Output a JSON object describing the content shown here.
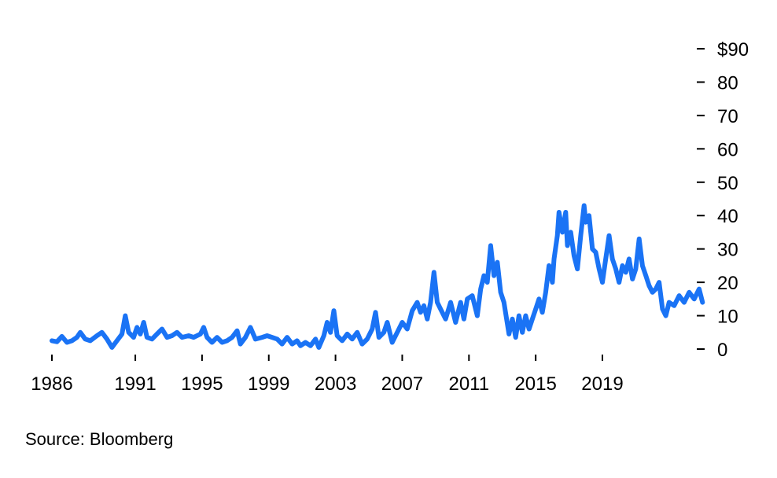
{
  "chart_data": {
    "type": "line",
    "title": "",
    "xlabel": "",
    "ylabel": "",
    "ylim": [
      0,
      90
    ],
    "xlim": [
      1986,
      2022.9
    ],
    "y_ticks": [
      0,
      10,
      20,
      30,
      40,
      50,
      60,
      70,
      80,
      90
    ],
    "y_tick_labels": [
      "0",
      "10",
      "20",
      "30",
      "40",
      "50",
      "60",
      "70",
      "80",
      "$90"
    ],
    "x_ticks": [
      1986,
      1991,
      1995,
      1999,
      2003,
      2007,
      2011,
      2015,
      2019
    ],
    "x_tick_labels": [
      "1986",
      "1991",
      "1995",
      "1999",
      "2003",
      "2007",
      "2011",
      "2015",
      "2019"
    ],
    "grid": false,
    "series": [
      {
        "color": "#1a73f5",
        "points": [
          [
            1986.0,
            2.5
          ],
          [
            1986.3,
            2.2
          ],
          [
            1986.6,
            3.8
          ],
          [
            1986.9,
            2.0
          ],
          [
            1987.2,
            2.5
          ],
          [
            1987.5,
            3.5
          ],
          [
            1987.7,
            5.0
          ],
          [
            1988.0,
            3.0
          ],
          [
            1988.3,
            2.5
          ],
          [
            1988.7,
            4.0
          ],
          [
            1989.0,
            5.0
          ],
          [
            1989.3,
            3.0
          ],
          [
            1989.6,
            0.5
          ],
          [
            1989.9,
            2.5
          ],
          [
            1990.2,
            4.5
          ],
          [
            1990.4,
            10.0
          ],
          [
            1990.6,
            5.0
          ],
          [
            1990.9,
            3.5
          ],
          [
            1991.1,
            6.5
          ],
          [
            1991.3,
            4.5
          ],
          [
            1991.5,
            8.0
          ],
          [
            1991.7,
            3.5
          ],
          [
            1992.0,
            3.0
          ],
          [
            1992.3,
            4.5
          ],
          [
            1992.6,
            6.0
          ],
          [
            1992.9,
            3.5
          ],
          [
            1993.2,
            4.0
          ],
          [
            1993.5,
            5.0
          ],
          [
            1993.8,
            3.5
          ],
          [
            1994.2,
            4.0
          ],
          [
            1994.5,
            3.5
          ],
          [
            1994.9,
            4.5
          ],
          [
            1995.1,
            6.5
          ],
          [
            1995.3,
            3.5
          ],
          [
            1995.6,
            2.0
          ],
          [
            1995.9,
            3.5
          ],
          [
            1996.2,
            2.0
          ],
          [
            1996.5,
            2.5
          ],
          [
            1996.8,
            3.5
          ],
          [
            1997.1,
            5.5
          ],
          [
            1997.3,
            1.5
          ],
          [
            1997.6,
            3.5
          ],
          [
            1997.9,
            6.5
          ],
          [
            1998.2,
            3.0
          ],
          [
            1998.6,
            3.5
          ],
          [
            1998.9,
            4.0
          ],
          [
            1999.2,
            3.5
          ],
          [
            1999.5,
            3.0
          ],
          [
            1999.8,
            1.5
          ],
          [
            2000.1,
            3.5
          ],
          [
            2000.4,
            1.5
          ],
          [
            2000.7,
            2.5
          ],
          [
            2000.9,
            1.0
          ],
          [
            2001.2,
            2.0
          ],
          [
            2001.5,
            1.0
          ],
          [
            2001.8,
            3.0
          ],
          [
            2002.0,
            0.5
          ],
          [
            2002.3,
            4.0
          ],
          [
            2002.5,
            8.0
          ],
          [
            2002.7,
            5.0
          ],
          [
            2002.9,
            11.5
          ],
          [
            2003.1,
            4.0
          ],
          [
            2003.4,
            2.5
          ],
          [
            2003.7,
            4.5
          ],
          [
            2004.0,
            3.0
          ],
          [
            2004.3,
            5.0
          ],
          [
            2004.6,
            1.5
          ],
          [
            2004.9,
            3.0
          ],
          [
            2005.2,
            6.0
          ],
          [
            2005.4,
            11.0
          ],
          [
            2005.6,
            3.5
          ],
          [
            2005.9,
            5.0
          ],
          [
            2006.1,
            8.0
          ],
          [
            2006.4,
            2.0
          ],
          [
            2006.7,
            5.0
          ],
          [
            2007.0,
            8.0
          ],
          [
            2007.3,
            6.0
          ],
          [
            2007.6,
            11.5
          ],
          [
            2007.9,
            14.0
          ],
          [
            2008.1,
            11.0
          ],
          [
            2008.3,
            13.0
          ],
          [
            2008.5,
            9.0
          ],
          [
            2008.7,
            14.0
          ],
          [
            2008.9,
            23.0
          ],
          [
            2009.1,
            14.0
          ],
          [
            2009.3,
            12.0
          ],
          [
            2009.6,
            9.0
          ],
          [
            2009.9,
            14.0
          ],
          [
            2010.2,
            8.0
          ],
          [
            2010.5,
            14.0
          ],
          [
            2010.7,
            9.0
          ],
          [
            2010.9,
            15.0
          ],
          [
            2011.2,
            16.0
          ],
          [
            2011.5,
            10.0
          ],
          [
            2011.7,
            18.0
          ],
          [
            2011.9,
            22.0
          ],
          [
            2012.1,
            20.0
          ],
          [
            2012.3,
            31.0
          ],
          [
            2012.5,
            22.0
          ],
          [
            2012.7,
            26.0
          ],
          [
            2012.9,
            17.0
          ],
          [
            2013.1,
            14.0
          ],
          [
            2013.4,
            4.5
          ],
          [
            2013.6,
            9.0
          ],
          [
            2013.8,
            3.5
          ],
          [
            2014.0,
            10.0
          ],
          [
            2014.2,
            5.0
          ],
          [
            2014.4,
            10.0
          ],
          [
            2014.6,
            6.0
          ],
          [
            2014.8,
            9.0
          ],
          [
            2015.0,
            12.0
          ],
          [
            2015.2,
            15.0
          ],
          [
            2015.4,
            11.0
          ],
          [
            2015.6,
            17.0
          ],
          [
            2015.8,
            25.0
          ],
          [
            2016.0,
            20.0
          ],
          [
            2016.1,
            27.0
          ],
          [
            2016.3,
            34.0
          ],
          [
            2016.4,
            41.0
          ],
          [
            2016.6,
            35.0
          ],
          [
            2016.8,
            41.0
          ],
          [
            2016.9,
            31.0
          ],
          [
            2017.1,
            35.0
          ],
          [
            2017.3,
            28.0
          ],
          [
            2017.5,
            24.0
          ],
          [
            2017.7,
            34.0
          ],
          [
            2017.9,
            43.0
          ],
          [
            2018.0,
            38.0
          ],
          [
            2018.2,
            40.0
          ],
          [
            2018.4,
            30.0
          ],
          [
            2018.6,
            29.0
          ],
          [
            2018.8,
            24.0
          ],
          [
            2019.0,
            20.0
          ],
          [
            2019.2,
            27.0
          ],
          [
            2019.4,
            34.0
          ],
          [
            2019.6,
            27.0
          ],
          [
            2019.8,
            24.0
          ],
          [
            2020.0,
            20.0
          ],
          [
            2020.2,
            25.0
          ],
          [
            2020.4,
            23.0
          ],
          [
            2020.6,
            27.0
          ],
          [
            2020.8,
            21.0
          ],
          [
            2021.0,
            24.0
          ],
          [
            2021.2,
            33.0
          ],
          [
            2021.4,
            25.0
          ],
          [
            2021.6,
            22.0
          ],
          [
            2021.8,
            19.0
          ],
          [
            2022.0,
            17.0
          ],
          [
            2022.2,
            18.0
          ],
          [
            2022.4,
            20.0
          ],
          [
            2022.6,
            12.0
          ],
          [
            2022.8,
            10.0
          ],
          [
            2023.0,
            14.0
          ],
          [
            2023.3,
            13.0
          ],
          [
            2023.6,
            16.0
          ],
          [
            2023.9,
            14.0
          ],
          [
            2024.2,
            17.0
          ],
          [
            2024.5,
            15.0
          ],
          [
            2024.8,
            18.0
          ],
          [
            2025.0,
            14.0
          ]
        ]
      }
    ],
    "source": "Source: Bloomberg"
  }
}
